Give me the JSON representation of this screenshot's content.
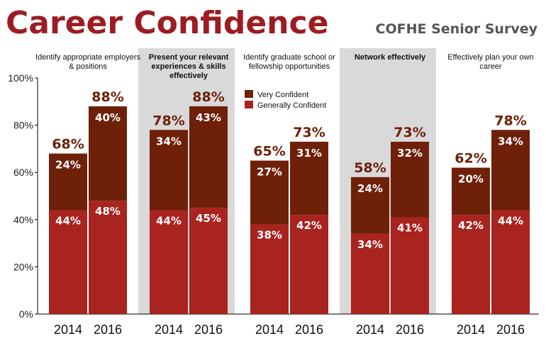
{
  "title": "Career Confidence",
  "subtitle": "COFHE Senior Survey",
  "colors": {
    "very_confident": "#6e2009",
    "generally_confident": "#a9231f",
    "title": "#9c1c22",
    "subtitle": "#555555",
    "panel_shade": "#d9d9d9",
    "total_label": "#6e2009"
  },
  "legend": {
    "very_confident": "Very Confident",
    "generally_confident": "Generally Confident"
  },
  "chart_data": {
    "type": "bar",
    "stacked": true,
    "ylim": [
      0,
      100
    ],
    "y_ticks": [
      "0%",
      "20%",
      "40%",
      "60%",
      "80%",
      "100%"
    ],
    "legend_position": "top of third panel",
    "groups": [
      {
        "label": "Identify appropriate employers & positions",
        "shaded": false,
        "bars": [
          {
            "year": "2014",
            "generally": 44,
            "very": 24,
            "total": 68
          },
          {
            "year": "2016",
            "generally": 48,
            "very": 40,
            "total": 88
          }
        ]
      },
      {
        "label": "Present your relevant experiences & skills effectively",
        "shaded": true,
        "bars": [
          {
            "year": "2014",
            "generally": 44,
            "very": 34,
            "total": 78
          },
          {
            "year": "2016",
            "generally": 45,
            "very": 43,
            "total": 88
          }
        ]
      },
      {
        "label": "Identify graduate school or fellowship opportunities",
        "shaded": false,
        "bars": [
          {
            "year": "2014",
            "generally": 38,
            "very": 27,
            "total": 65
          },
          {
            "year": "2016",
            "generally": 42,
            "very": 31,
            "total": 73
          }
        ]
      },
      {
        "label": "Network effectively",
        "shaded": true,
        "bars": [
          {
            "year": "2014",
            "generally": 34,
            "very": 24,
            "total": 58
          },
          {
            "year": "2016",
            "generally": 41,
            "very": 32,
            "total": 73
          }
        ]
      },
      {
        "label": "Effectively plan your own career",
        "shaded": false,
        "bars": [
          {
            "year": "2014",
            "generally": 42,
            "very": 20,
            "total": 62
          },
          {
            "year": "2016",
            "generally": 44,
            "very": 34,
            "total": 78
          }
        ]
      }
    ]
  }
}
